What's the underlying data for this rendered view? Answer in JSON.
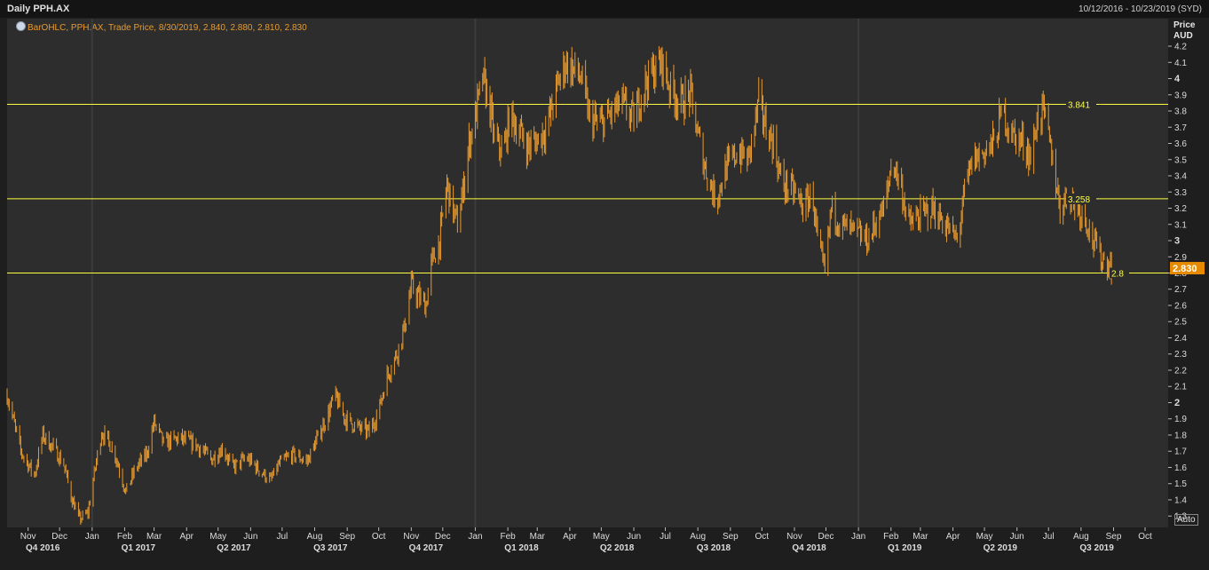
{
  "window": {
    "title": "Daily PPH.AX",
    "date_range": "10/12/2016 - 10/23/2019 (SYD)",
    "legend": "BarOHLC, PPH.AX, Trade Price, 8/30/2019, 2.840, 2.880, 2.810, 2.830",
    "y_axis_header": [
      "Price",
      "AUD"
    ],
    "auto_button": "Auto"
  },
  "colors": {
    "background": "#1e1e1e",
    "plot": "#2d2d2d",
    "bars": "#e89a2e",
    "lines": "#ffff40",
    "last_price_bg": "#e68a00"
  },
  "chart_data": {
    "type": "bar",
    "subtype": "ohlc",
    "series_label": "BarOHLC, PPH.AX, Trade Price",
    "x_range": [
      "2016-10-12",
      "2019-10-23"
    ],
    "ylim": [
      1.23,
      4.37
    ],
    "y_ticks": [
      "1.3",
      "1.4",
      "1.5",
      "1.6",
      "1.7",
      "1.8",
      "1.9",
      "2",
      "2.1",
      "2.2",
      "2.3",
      "2.4",
      "2.5",
      "2.6",
      "2.7",
      "2.8",
      "2.9",
      "3",
      "3.1",
      "3.2",
      "3.3",
      "3.4",
      "3.5",
      "3.6",
      "3.7",
      "3.8",
      "3.9",
      "4",
      "4.1",
      "4.2"
    ],
    "months": [
      {
        "label": "Nov",
        "date": "2016-11-01"
      },
      {
        "label": "Dec",
        "date": "2016-12-01"
      },
      {
        "label": "Jan",
        "date": "2017-01-01"
      },
      {
        "label": "Feb",
        "date": "2017-02-01"
      },
      {
        "label": "Mar",
        "date": "2017-03-01"
      },
      {
        "label": "Apr",
        "date": "2017-04-01"
      },
      {
        "label": "May",
        "date": "2017-05-01"
      },
      {
        "label": "Jun",
        "date": "2017-06-01"
      },
      {
        "label": "Jul",
        "date": "2017-07-01"
      },
      {
        "label": "Aug",
        "date": "2017-08-01"
      },
      {
        "label": "Sep",
        "date": "2017-09-01"
      },
      {
        "label": "Oct",
        "date": "2017-10-01"
      },
      {
        "label": "Nov",
        "date": "2017-11-01"
      },
      {
        "label": "Dec",
        "date": "2017-12-01"
      },
      {
        "label": "Jan",
        "date": "2018-01-01"
      },
      {
        "label": "Feb",
        "date": "2018-02-01"
      },
      {
        "label": "Mar",
        "date": "2018-03-01"
      },
      {
        "label": "Apr",
        "date": "2018-04-01"
      },
      {
        "label": "May",
        "date": "2018-05-01"
      },
      {
        "label": "Jun",
        "date": "2018-06-01"
      },
      {
        "label": "Jul",
        "date": "2018-07-01"
      },
      {
        "label": "Aug",
        "date": "2018-08-01"
      },
      {
        "label": "Sep",
        "date": "2018-09-01"
      },
      {
        "label": "Oct",
        "date": "2018-10-01"
      },
      {
        "label": "Nov",
        "date": "2018-11-01"
      },
      {
        "label": "Dec",
        "date": "2018-12-01"
      },
      {
        "label": "Jan",
        "date": "2019-01-01"
      },
      {
        "label": "Feb",
        "date": "2019-02-01"
      },
      {
        "label": "Mar",
        "date": "2019-03-01"
      },
      {
        "label": "Apr",
        "date": "2019-04-01"
      },
      {
        "label": "May",
        "date": "2019-05-01"
      },
      {
        "label": "Jun",
        "date": "2019-06-01"
      },
      {
        "label": "Jul",
        "date": "2019-07-01"
      },
      {
        "label": "Aug",
        "date": "2019-08-01"
      },
      {
        "label": "Sep",
        "date": "2019-09-01"
      },
      {
        "label": "Oct",
        "date": "2019-10-01"
      }
    ],
    "quarters": [
      {
        "label": "Q4 2016",
        "date": "2016-11-15"
      },
      {
        "label": "Q1 2017",
        "date": "2017-02-14"
      },
      {
        "label": "Q2 2017",
        "date": "2017-05-16"
      },
      {
        "label": "Q3 2017",
        "date": "2017-08-16"
      },
      {
        "label": "Q4 2017",
        "date": "2017-11-15"
      },
      {
        "label": "Q1 2018",
        "date": "2018-02-14"
      },
      {
        "label": "Q2 2018",
        "date": "2018-05-16"
      },
      {
        "label": "Q3 2018",
        "date": "2018-08-16"
      },
      {
        "label": "Q4 2018",
        "date": "2018-11-15"
      },
      {
        "label": "Q1 2019",
        "date": "2019-02-14"
      },
      {
        "label": "Q2 2019",
        "date": "2019-05-16"
      },
      {
        "label": "Q3 2019",
        "date": "2019-08-16"
      }
    ],
    "year_separators": [
      "2017-01-01",
      "2018-01-01",
      "2019-01-01"
    ],
    "horizontal_lines": [
      {
        "value": 3.841,
        "label": "3.841"
      },
      {
        "value": 3.258,
        "label": "3.258"
      },
      {
        "value": 2.8,
        "label": "2.8"
      }
    ],
    "last_price": {
      "value": 2.83,
      "label": "2.830"
    },
    "last_bar": {
      "date": "2019-08-30",
      "open": 2.84,
      "high": 2.88,
      "low": 2.81,
      "close": 2.83
    },
    "close_path": [
      [
        "2016-10-12",
        2.05
      ],
      [
        "2016-10-25",
        1.7
      ],
      [
        "2016-11-07",
        1.55
      ],
      [
        "2016-11-15",
        1.8
      ],
      [
        "2016-11-25",
        1.72
      ],
      [
        "2016-12-05",
        1.62
      ],
      [
        "2016-12-12",
        1.42
      ],
      [
        "2016-12-20",
        1.28
      ],
      [
        "2016-12-28",
        1.32
      ],
      [
        "2017-01-04",
        1.6
      ],
      [
        "2017-01-10",
        1.82
      ],
      [
        "2017-01-22",
        1.7
      ],
      [
        "2017-02-02",
        1.45
      ],
      [
        "2017-02-12",
        1.6
      ],
      [
        "2017-02-22",
        1.68
      ],
      [
        "2017-03-01",
        1.88
      ],
      [
        "2017-03-10",
        1.75
      ],
      [
        "2017-03-25",
        1.78
      ],
      [
        "2017-04-10",
        1.74
      ],
      [
        "2017-04-25",
        1.65
      ],
      [
        "2017-05-05",
        1.72
      ],
      [
        "2017-05-15",
        1.6
      ],
      [
        "2017-05-28",
        1.66
      ],
      [
        "2017-06-10",
        1.58
      ],
      [
        "2017-06-20",
        1.52
      ],
      [
        "2017-06-28",
        1.62
      ],
      [
        "2017-07-10",
        1.68
      ],
      [
        "2017-07-25",
        1.64
      ],
      [
        "2017-08-05",
        1.8
      ],
      [
        "2017-08-15",
        1.95
      ],
      [
        "2017-08-20",
        2.05
      ],
      [
        "2017-08-30",
        1.9
      ],
      [
        "2017-09-10",
        1.85
      ],
      [
        "2017-09-22",
        1.82
      ],
      [
        "2017-10-01",
        1.95
      ],
      [
        "2017-10-08",
        2.15
      ],
      [
        "2017-10-18",
        2.3
      ],
      [
        "2017-10-25",
        2.45
      ],
      [
        "2017-11-01",
        2.72
      ],
      [
        "2017-11-08",
        2.65
      ],
      [
        "2017-11-15",
        2.6
      ],
      [
        "2017-11-20",
        2.85
      ],
      [
        "2017-11-28",
        3.0
      ],
      [
        "2017-12-05",
        3.35
      ],
      [
        "2017-12-10",
        3.2
      ],
      [
        "2017-12-15",
        3.1
      ],
      [
        "2017-12-20",
        3.3
      ],
      [
        "2017-12-26",
        3.6
      ],
      [
        "2018-01-02",
        3.8
      ],
      [
        "2018-01-08",
        4.0
      ],
      [
        "2018-01-14",
        3.85
      ],
      [
        "2018-01-20",
        3.6
      ],
      [
        "2018-01-28",
        3.55
      ],
      [
        "2018-02-03",
        3.78
      ],
      [
        "2018-02-10",
        3.7
      ],
      [
        "2018-02-20",
        3.58
      ],
      [
        "2018-03-01",
        3.62
      ],
      [
        "2018-03-10",
        3.7
      ],
      [
        "2018-03-20",
        3.95
      ],
      [
        "2018-03-28",
        4.1
      ],
      [
        "2018-04-05",
        4.05
      ],
      [
        "2018-04-12",
        4.0
      ],
      [
        "2018-04-20",
        3.75
      ],
      [
        "2018-04-30",
        3.72
      ],
      [
        "2018-05-10",
        3.78
      ],
      [
        "2018-05-20",
        3.85
      ],
      [
        "2018-06-01",
        3.75
      ],
      [
        "2018-06-10",
        3.95
      ],
      [
        "2018-06-20",
        4.05
      ],
      [
        "2018-06-28",
        4.1
      ],
      [
        "2018-07-05",
        3.95
      ],
      [
        "2018-07-15",
        3.85
      ],
      [
        "2018-07-25",
        3.9
      ],
      [
        "2018-08-01",
        3.65
      ],
      [
        "2018-08-08",
        3.45
      ],
      [
        "2018-08-18",
        3.25
      ],
      [
        "2018-08-28",
        3.45
      ],
      [
        "2018-09-08",
        3.55
      ],
      [
        "2018-09-18",
        3.5
      ],
      [
        "2018-09-28",
        3.85
      ],
      [
        "2018-10-05",
        3.7
      ],
      [
        "2018-10-12",
        3.6
      ],
      [
        "2018-10-20",
        3.35
      ],
      [
        "2018-11-01",
        3.3
      ],
      [
        "2018-11-10",
        3.2
      ],
      [
        "2018-11-18",
        3.3
      ],
      [
        "2018-11-24",
        2.95
      ],
      [
        "2018-11-30",
        2.8
      ],
      [
        "2018-12-06",
        3.2
      ],
      [
        "2018-12-15",
        3.1
      ],
      [
        "2018-12-28",
        3.05
      ],
      [
        "2019-01-10",
        3.0
      ],
      [
        "2019-01-20",
        3.15
      ],
      [
        "2019-01-26",
        3.2
      ],
      [
        "2019-02-02",
        3.5
      ],
      [
        "2019-02-10",
        3.35
      ],
      [
        "2019-02-18",
        3.1
      ],
      [
        "2019-03-01",
        3.15
      ],
      [
        "2019-03-12",
        3.2
      ],
      [
        "2019-03-25",
        3.1
      ],
      [
        "2019-04-05",
        3.0
      ],
      [
        "2019-04-12",
        3.3
      ],
      [
        "2019-04-20",
        3.5
      ],
      [
        "2019-05-01",
        3.55
      ],
      [
        "2019-05-10",
        3.6
      ],
      [
        "2019-05-18",
        3.8
      ],
      [
        "2019-05-28",
        3.65
      ],
      [
        "2019-06-08",
        3.6
      ],
      [
        "2019-06-15",
        3.5
      ],
      [
        "2019-06-20",
        3.75
      ],
      [
        "2019-06-26",
        3.8
      ],
      [
        "2019-07-05",
        3.5
      ],
      [
        "2019-07-12",
        3.2
      ],
      [
        "2019-07-20",
        3.3
      ],
      [
        "2019-07-28",
        3.2
      ],
      [
        "2019-08-05",
        3.15
      ],
      [
        "2019-08-12",
        3.0
      ],
      [
        "2019-08-20",
        2.9
      ],
      [
        "2019-08-30",
        2.83
      ]
    ]
  }
}
